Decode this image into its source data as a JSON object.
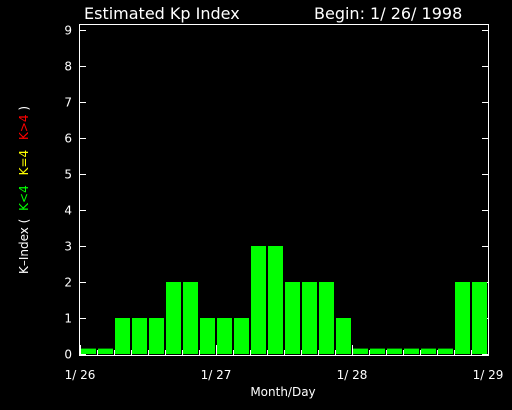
{
  "chart_data": {
    "type": "bar",
    "title": "Estimated Kp Index",
    "begin_label": "Begin: 1/ 26/ 1998",
    "xlabel": "Month/Day",
    "ylabel": {
      "prefix": "K–Index (",
      "parts": [
        {
          "text": "K<4",
          "color": "#00ff00"
        },
        {
          "text": "K=4",
          "color": "#ffff00"
        },
        {
          "text": "K>4",
          "color": "#ff0000"
        }
      ],
      "suffix": " )"
    },
    "ylim": [
      0,
      9
    ],
    "yticks": [
      0,
      1,
      2,
      3,
      4,
      5,
      6,
      7,
      8,
      9
    ],
    "x_tick_labels": [
      "1/ 26",
      "1/ 27",
      "1/ 28",
      "1/ 29"
    ],
    "bar_color": "#00ff00",
    "values": [
      0.15,
      0.15,
      1,
      1,
      1,
      2,
      2,
      1,
      1,
      1,
      3,
      3,
      2,
      2,
      2,
      1,
      0.15,
      0.15,
      0.15,
      0.15,
      0.15,
      0.15,
      2,
      2
    ],
    "grid": false
  }
}
